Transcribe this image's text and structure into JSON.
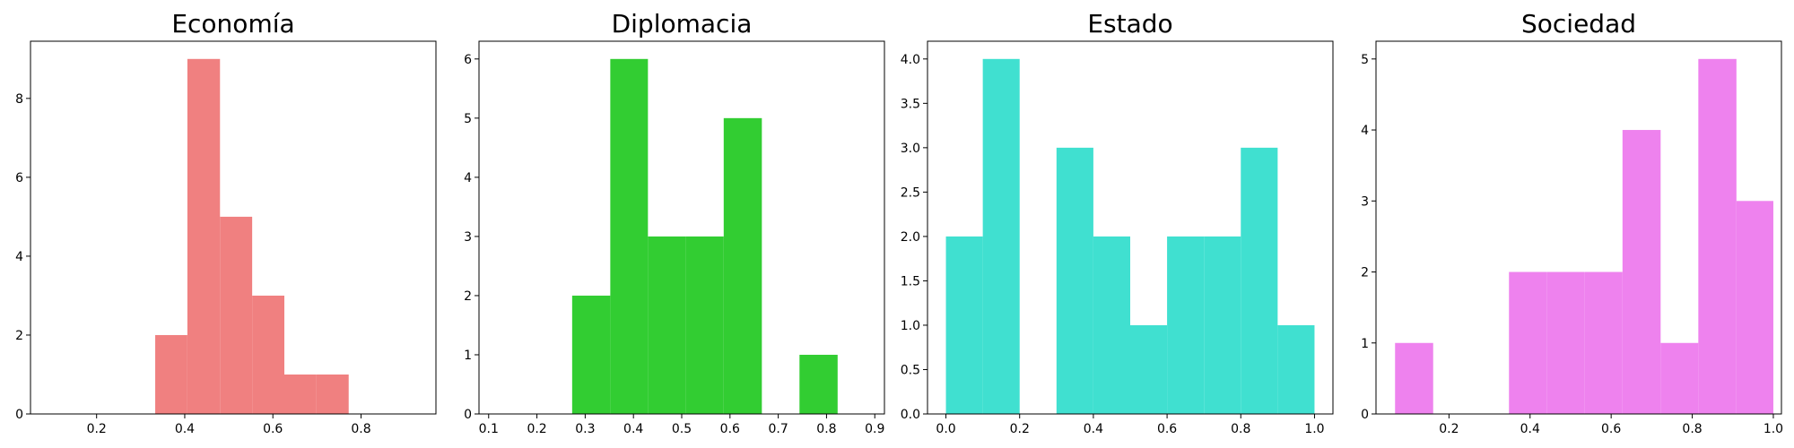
{
  "chart_data": [
    {
      "type": "bar",
      "title": "Economía",
      "color": "#F08080",
      "xlim": [
        0.05,
        0.97
      ],
      "ylim": [
        0,
        9.45
      ],
      "bins": [
        [
          0.333,
          0.406
        ],
        [
          0.406,
          0.48
        ],
        [
          0.48,
          0.553
        ],
        [
          0.553,
          0.626
        ],
        [
          0.626,
          0.699
        ]
      ],
      "values": [
        2,
        9,
        5,
        3,
        1
      ],
      "bins_extra": [
        [
          0.699,
          0.772
        ]
      ],
      "values_extra": [
        1
      ],
      "xticks": [
        0.2,
        0.4,
        0.6,
        0.8
      ],
      "xtick_labels": [
        "0.2",
        "0.4",
        "0.6",
        "0.8"
      ],
      "yticks": [
        0,
        2,
        4,
        6,
        8
      ],
      "ytick_labels": [
        "0",
        "2",
        "4",
        "6",
        "8"
      ]
    },
    {
      "type": "bar",
      "title": "Diplomacia",
      "color": "#32CD32",
      "xlim": [
        0.08,
        0.92
      ],
      "ylim": [
        0,
        6.3
      ],
      "bins": [
        [
          0.273,
          0.352
        ],
        [
          0.352,
          0.43
        ],
        [
          0.43,
          0.509
        ],
        [
          0.509,
          0.587
        ],
        [
          0.587,
          0.666
        ],
        [
          0.666,
          0.744
        ],
        [
          0.744,
          0.823
        ]
      ],
      "values": [
        2,
        6,
        3,
        3,
        5,
        0,
        1
      ],
      "xticks": [
        0.1,
        0.2,
        0.3,
        0.4,
        0.5,
        0.6,
        0.7,
        0.8,
        0.9
      ],
      "xtick_labels": [
        "0.1",
        "0.2",
        "0.3",
        "0.4",
        "0.5",
        "0.6",
        "0.7",
        "0.8",
        "0.9"
      ],
      "yticks": [
        0,
        1,
        2,
        3,
        4,
        5,
        6
      ],
      "ytick_labels": [
        "0",
        "1",
        "2",
        "3",
        "4",
        "5",
        "6"
      ]
    },
    {
      "type": "bar",
      "title": "Estado",
      "color": "#40E0D0",
      "xlim": [
        -0.05,
        1.05
      ],
      "ylim": [
        0,
        4.2
      ],
      "bins": [
        [
          0.0,
          0.1
        ],
        [
          0.1,
          0.2
        ],
        [
          0.2,
          0.3
        ],
        [
          0.3,
          0.4
        ],
        [
          0.4,
          0.5
        ],
        [
          0.5,
          0.6
        ],
        [
          0.6,
          0.7
        ],
        [
          0.7,
          0.8
        ],
        [
          0.8,
          0.9
        ],
        [
          0.9,
          1.0
        ]
      ],
      "values": [
        2,
        4,
        0,
        3,
        2,
        1,
        2,
        2,
        3,
        1
      ],
      "xticks": [
        0.0,
        0.2,
        0.4,
        0.6,
        0.8,
        1.0
      ],
      "xtick_labels": [
        "0.0",
        "0.2",
        "0.4",
        "0.6",
        "0.8",
        "1.0"
      ],
      "yticks": [
        0,
        0.5,
        1.0,
        1.5,
        2.0,
        2.5,
        3.0,
        3.5,
        4.0
      ],
      "ytick_labels": [
        "0.0",
        "0.5",
        "1.0",
        "1.5",
        "2.0",
        "2.5",
        "3.0",
        "3.5",
        "4.0"
      ]
    },
    {
      "type": "bar",
      "title": "Sociedad",
      "color": "#EE82EE",
      "xlim": [
        0.02,
        1.02
      ],
      "ylim": [
        0,
        5.25
      ],
      "bins": [
        [
          0.067,
          0.161
        ],
        [
          0.161,
          0.254
        ],
        [
          0.254,
          0.348
        ],
        [
          0.348,
          0.441
        ],
        [
          0.441,
          0.535
        ],
        [
          0.535,
          0.628
        ],
        [
          0.628,
          0.722
        ],
        [
          0.722,
          0.815
        ],
        [
          0.815,
          0.909
        ],
        [
          0.909,
          1.0
        ]
      ],
      "values": [
        1,
        0,
        0,
        2,
        2,
        2,
        4,
        1,
        5,
        3
      ],
      "xticks": [
        0.2,
        0.4,
        0.6,
        0.8,
        1.0
      ],
      "xtick_labels": [
        "0.2",
        "0.4",
        "0.6",
        "0.8",
        "1.0"
      ],
      "yticks": [
        0,
        1,
        2,
        3,
        4,
        5
      ],
      "ytick_labels": [
        "0",
        "1",
        "2",
        "3",
        "4",
        "5"
      ]
    }
  ]
}
